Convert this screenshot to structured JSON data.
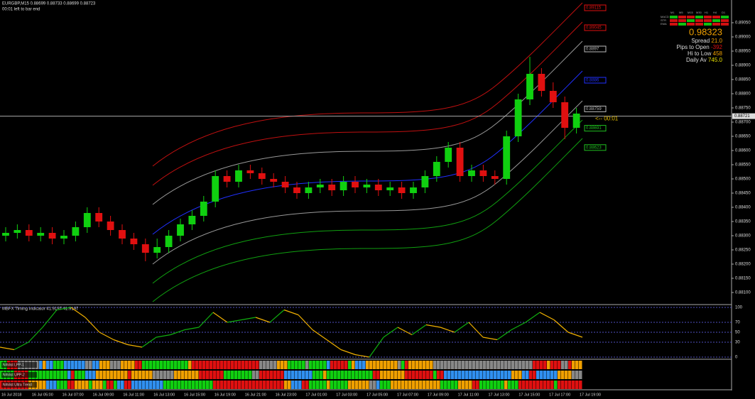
{
  "header": {
    "symbol_line": "EURGBP,M15  0.88699 0.88733 0.88699 0.88723",
    "timer": "00:01 left to bar end"
  },
  "price_axis": {
    "ylim": [
      0.8806,
      0.8913
    ],
    "ticks": [
      {
        "value": 0.881,
        "label": "0.88100"
      },
      {
        "value": 0.8815,
        "label": "0.88150"
      },
      {
        "value": 0.882,
        "label": "0.88200"
      },
      {
        "value": 0.8825,
        "label": "0.88250"
      },
      {
        "value": 0.883,
        "label": "0.88300"
      },
      {
        "value": 0.8835,
        "label": "0.88350"
      },
      {
        "value": 0.884,
        "label": "0.88400"
      },
      {
        "value": 0.8845,
        "label": "0.88450"
      },
      {
        "value": 0.885,
        "label": "0.88500"
      },
      {
        "value": 0.8855,
        "label": "0.88550"
      },
      {
        "value": 0.886,
        "label": "0.88600"
      },
      {
        "value": 0.8865,
        "label": "0.88650"
      },
      {
        "value": 0.887,
        "label": "0.88700"
      },
      {
        "value": 0.8875,
        "label": "0.88750"
      },
      {
        "value": 0.888,
        "label": "0.88800"
      },
      {
        "value": 0.8885,
        "label": "0.88850"
      },
      {
        "value": 0.889,
        "label": "0.88900"
      },
      {
        "value": 0.8895,
        "label": "0.88950"
      },
      {
        "value": 0.89,
        "label": "0.89000"
      },
      {
        "value": 0.8905,
        "label": "0.89050"
      }
    ],
    "current_price": 0.88721,
    "timer_label": "<-- 00:01"
  },
  "candles": [
    [
      0.883,
      0.8833,
      0.8828,
      0.8831
    ],
    [
      0.8831,
      0.8834,
      0.8829,
      0.8832
    ],
    [
      0.8832,
      0.8834,
      0.8828,
      0.883
    ],
    [
      0.883,
      0.8833,
      0.8828,
      0.8831
    ],
    [
      0.8831,
      0.8833,
      0.8827,
      0.8829
    ],
    [
      0.8829,
      0.8832,
      0.8827,
      0.883
    ],
    [
      0.883,
      0.8835,
      0.8828,
      0.8833
    ],
    [
      0.8833,
      0.884,
      0.8831,
      0.8838
    ],
    [
      0.8838,
      0.884,
      0.8833,
      0.8835
    ],
    [
      0.8835,
      0.8837,
      0.883,
      0.8832
    ],
    [
      0.8832,
      0.8834,
      0.8827,
      0.8829
    ],
    [
      0.8829,
      0.8831,
      0.8825,
      0.8827
    ],
    [
      0.8827,
      0.8829,
      0.8821,
      0.8824
    ],
    [
      0.8824,
      0.8829,
      0.8822,
      0.8826
    ],
    [
      0.8826,
      0.8832,
      0.8824,
      0.883
    ],
    [
      0.883,
      0.8836,
      0.8828,
      0.8834
    ],
    [
      0.8834,
      0.8839,
      0.8832,
      0.8837
    ],
    [
      0.8837,
      0.8844,
      0.8835,
      0.8842
    ],
    [
      0.8842,
      0.8853,
      0.884,
      0.8851
    ],
    [
      0.8851,
      0.8853,
      0.8847,
      0.8849
    ],
    [
      0.8849,
      0.8855,
      0.8847,
      0.8853
    ],
    [
      0.8853,
      0.8855,
      0.885,
      0.8852
    ],
    [
      0.8852,
      0.8854,
      0.8848,
      0.885
    ],
    [
      0.885,
      0.8852,
      0.8847,
      0.8849
    ],
    [
      0.8849,
      0.8851,
      0.8845,
      0.8847
    ],
    [
      0.8847,
      0.8849,
      0.8843,
      0.8845
    ],
    [
      0.8845,
      0.8849,
      0.8843,
      0.8847
    ],
    [
      0.8847,
      0.885,
      0.8845,
      0.8848
    ],
    [
      0.8848,
      0.885,
      0.8844,
      0.8846
    ],
    [
      0.8846,
      0.8851,
      0.8844,
      0.8849
    ],
    [
      0.8849,
      0.8851,
      0.8845,
      0.8847
    ],
    [
      0.8847,
      0.885,
      0.8845,
      0.8848
    ],
    [
      0.8848,
      0.885,
      0.8844,
      0.8846
    ],
    [
      0.8846,
      0.8849,
      0.8844,
      0.8847
    ],
    [
      0.8847,
      0.8849,
      0.8843,
      0.8845
    ],
    [
      0.8845,
      0.8849,
      0.8843,
      0.8847
    ],
    [
      0.8847,
      0.8853,
      0.8845,
      0.8851
    ],
    [
      0.8851,
      0.8858,
      0.8849,
      0.8856
    ],
    [
      0.8856,
      0.8863,
      0.8854,
      0.8861
    ],
    [
      0.8861,
      0.8863,
      0.8849,
      0.8851
    ],
    [
      0.8851,
      0.8855,
      0.8849,
      0.8853
    ],
    [
      0.8853,
      0.8855,
      0.8849,
      0.8851
    ],
    [
      0.8851,
      0.8853,
      0.8848,
      0.885
    ],
    [
      0.885,
      0.8867,
      0.8848,
      0.8865
    ],
    [
      0.8865,
      0.888,
      0.8863,
      0.8878
    ],
    [
      0.8878,
      0.8893,
      0.8876,
      0.8887
    ],
    [
      0.8887,
      0.8889,
      0.8879,
      0.8881
    ],
    [
      0.8881,
      0.8884,
      0.8875,
      0.8877
    ],
    [
      0.8877,
      0.8879,
      0.8864,
      0.8868
    ],
    [
      0.8868,
      0.8875,
      0.8866,
      0.8873
    ]
  ],
  "levels": [
    {
      "value": 0.89115,
      "color": "#e01010"
    },
    {
      "value": 0.89045,
      "color": "#e01010"
    },
    {
      "value": 0.8897,
      "color": "#bbbbbb"
    },
    {
      "value": 0.8886,
      "color": "#2030ff"
    },
    {
      "value": 0.88759,
      "color": "#bbbbbb"
    },
    {
      "value": 0.88691,
      "color": "#20c020"
    },
    {
      "value": 0.88623,
      "color": "#20c020"
    }
  ],
  "info_panel": {
    "columns": [
      "M1",
      "M5",
      "M15",
      "M30",
      "H1",
      "H4",
      "D1"
    ],
    "rows": [
      "MACD",
      "STR",
      "EMA"
    ],
    "price": "0.98323",
    "spread_label": "Spread",
    "spread": "21.0",
    "pips_label": "Pips to Open",
    "pips": "-392",
    "hilo_label": "Hi to Low",
    "hilo": "458",
    "daily_label": "Daily Av",
    "daily": "745.0"
  },
  "oscillator": {
    "title": "MBFX Timing Indicator 41.9197 41.9197",
    "ylim": [
      0,
      100
    ],
    "ticks": [
      100,
      70,
      50,
      30,
      0
    ],
    "values": [
      20,
      15,
      30,
      60,
      95,
      100,
      80,
      50,
      35,
      25,
      20,
      40,
      45,
      55,
      60,
      90,
      70,
      75,
      80,
      70,
      95,
      85,
      55,
      35,
      15,
      5,
      0,
      40,
      60,
      45,
      65,
      60,
      50,
      70,
      40,
      35,
      55,
      70,
      90,
      75,
      50,
      40
    ]
  },
  "heat_rows": [
    "Nihilist LPP-1",
    "Nihilist UPP-2",
    "Nihilist Ultra Trend"
  ],
  "time_axis": [
    "16 Jul 2018",
    "16 Jul 05:00",
    "16 Jul 07:00",
    "16 Jul 09:00",
    "16 Jul 11:00",
    "16 Jul 13:00",
    "16 Jul 15:00",
    "16 Jul 19:00",
    "16 Jul 21:00",
    "16 Jul 23:00",
    "17 Jul 01:00",
    "17 Jul 03:00",
    "17 Jul 05:00",
    "17 Jul 07:00",
    "17 Jul 09:00",
    "17 Jul 11:00",
    "17 Jul 13:00",
    "17 Jul 15:00",
    "17 Jul 17:00",
    "17 Jul 19:00"
  ]
}
